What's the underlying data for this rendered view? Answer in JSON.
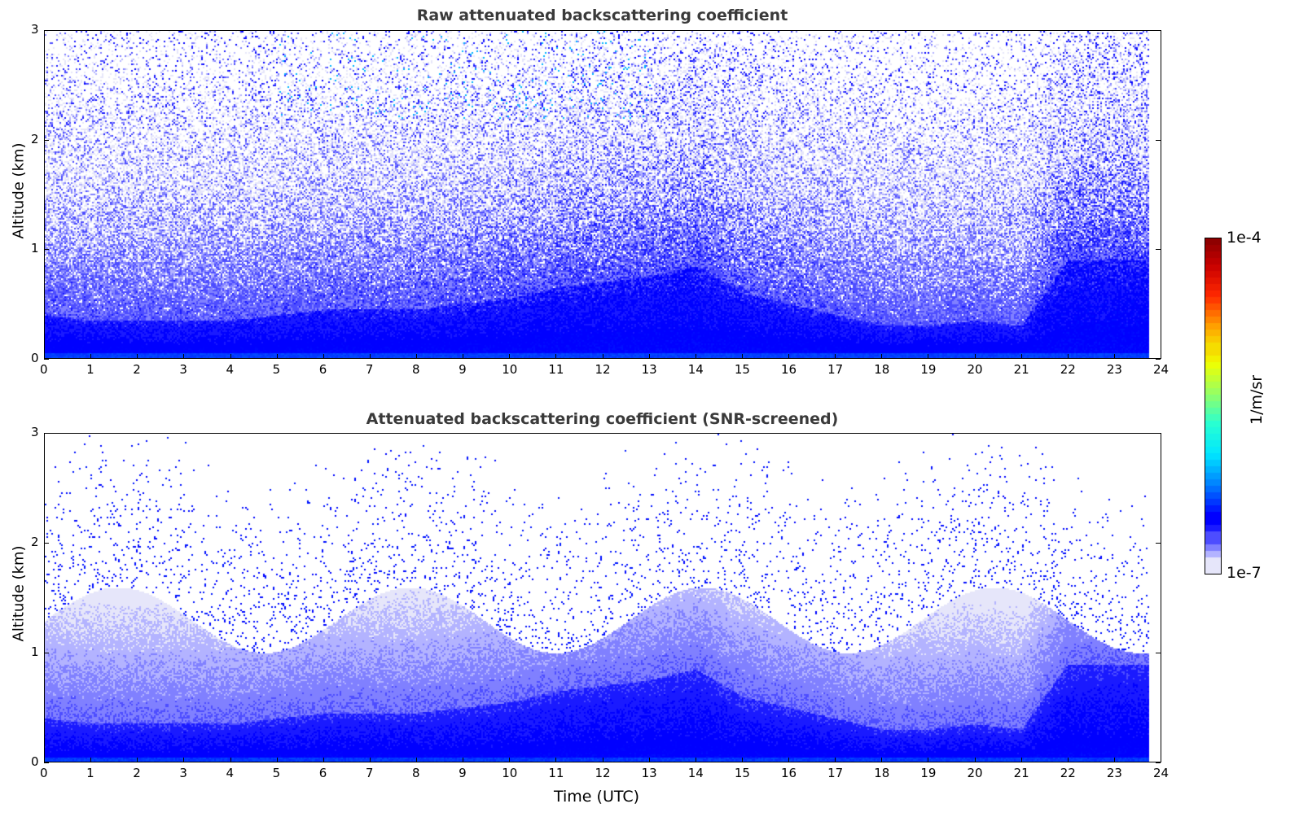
{
  "chart_data": [
    {
      "type": "heatmap",
      "title": "Raw attenuated backscattering coefficient",
      "xlabel": "",
      "ylabel": "Altitude (km)",
      "xlim": [
        0,
        24
      ],
      "ylim": [
        0,
        3
      ],
      "xticks": [
        0,
        1,
        2,
        3,
        4,
        5,
        6,
        7,
        8,
        9,
        10,
        11,
        12,
        13,
        14,
        15,
        16,
        17,
        18,
        19,
        20,
        21,
        22,
        23,
        24
      ],
      "yticks": [
        0,
        1,
        2,
        3
      ],
      "data_end_hour": 23.75,
      "screened": false
    },
    {
      "type": "heatmap",
      "title": "Attenuated backscattering coefficient (SNR-screened)",
      "xlabel": "Time (UTC)",
      "ylabel": "Altitude (km)",
      "xlim": [
        0,
        24
      ],
      "ylim": [
        0,
        3
      ],
      "xticks": [
        0,
        1,
        2,
        3,
        4,
        5,
        6,
        7,
        8,
        9,
        10,
        11,
        12,
        13,
        14,
        15,
        16,
        17,
        18,
        19,
        20,
        21,
        22,
        23,
        24
      ],
      "yticks": [
        0,
        1,
        2,
        3
      ],
      "data_end_hour": 23.75,
      "screened": true
    }
  ],
  "aerosol_layer_top_km": {
    "hours": [
      0,
      1,
      2,
      3,
      4,
      5,
      6,
      7,
      8,
      9,
      10,
      11,
      12,
      13,
      14,
      15,
      16,
      17,
      18,
      19,
      20,
      21,
      22,
      23
    ],
    "values": [
      0.4,
      0.35,
      0.35,
      0.35,
      0.35,
      0.4,
      0.45,
      0.45,
      0.45,
      0.5,
      0.55,
      0.65,
      0.7,
      0.75,
      0.85,
      0.6,
      0.5,
      0.4,
      0.3,
      0.3,
      0.35,
      0.3,
      0.9,
      0.9
    ]
  },
  "colorbar": {
    "label": "1/m/sr",
    "min_label": "1e-7",
    "max_label": "1e-4",
    "scale": "log",
    "range": [
      1e-07,
      0.0001
    ],
    "low_colors": [
      "#e6e6fa",
      "#b3b3ff",
      "#8080ff",
      "#4d4dff",
      "#1a1aff",
      "#0000ff"
    ]
  }
}
